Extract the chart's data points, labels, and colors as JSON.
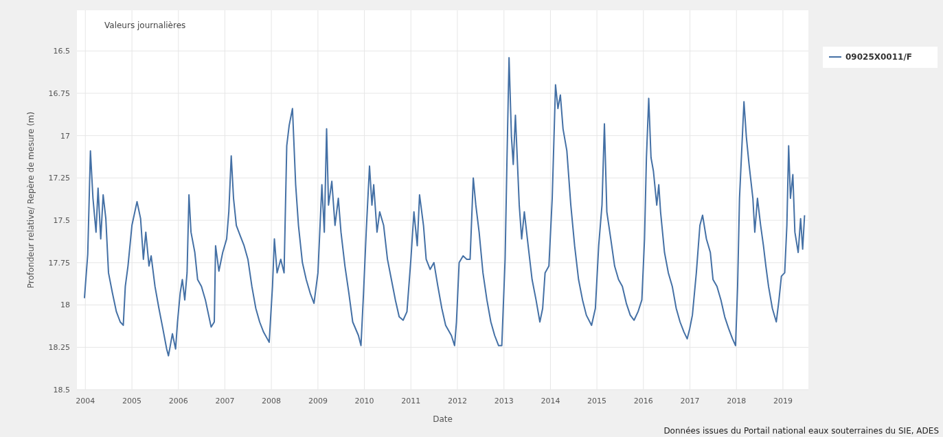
{
  "chart_data": {
    "type": "line",
    "title": "Valeurs journalières",
    "xlabel": "Date",
    "ylabel": "Profondeur relative/ Repère de mesure (m)",
    "annotations": [
      "Données issues du Portail national eaux souterraines du SIE, ADES"
    ],
    "xlim": [
      "2003-10-27",
      "2019-07-20"
    ],
    "xticks": [
      "2004",
      "2005",
      "2006",
      "2007",
      "2008",
      "2009",
      "2010",
      "2011",
      "2012",
      "2013",
      "2014",
      "2015",
      "2016",
      "2017",
      "2018",
      "2019"
    ],
    "ylim": [
      18.5,
      16.26
    ],
    "yticks": [
      16.5,
      16.75,
      17,
      17.25,
      17.5,
      17.75,
      18,
      18.25,
      18.5
    ],
    "grid": true,
    "legend": "right",
    "marker": "none",
    "line_style": "solid",
    "series": [
      {
        "name": "09025X0011/F",
        "color": "#4470a5",
        "x": [
          "2003-12-25",
          "2004-01-20",
          "2004-02-10",
          "2004-03-01",
          "2004-03-25",
          "2004-04-10",
          "2004-05-01",
          "2004-05-20",
          "2004-06-10",
          "2004-07-01",
          "2004-08-01",
          "2004-09-01",
          "2004-10-01",
          "2004-10-25",
          "2004-11-10",
          "2004-12-01",
          "2005-01-01",
          "2005-02-10",
          "2005-03-10",
          "2005-04-01",
          "2005-04-20",
          "2005-05-15",
          "2005-06-01",
          "2005-07-01",
          "2005-08-01",
          "2005-09-01",
          "2005-10-01",
          "2005-10-15",
          "2005-11-15",
          "2005-12-10",
          "2005-12-25",
          "2006-01-15",
          "2006-02-01",
          "2006-02-20",
          "2006-03-10",
          "2006-03-25",
          "2006-04-10",
          "2006-05-10",
          "2006-06-01",
          "2006-07-01",
          "2006-08-01",
          "2006-09-15",
          "2006-10-10",
          "2006-10-20",
          "2006-11-15",
          "2006-12-15",
          "2007-01-15",
          "2007-02-01",
          "2007-02-20",
          "2007-03-10",
          "2007-04-01",
          "2007-05-01",
          "2007-06-01",
          "2007-07-01",
          "2007-08-01",
          "2007-09-01",
          "2007-10-01",
          "2007-11-01",
          "2007-12-15",
          "2008-01-10",
          "2008-01-25",
          "2008-02-15",
          "2008-03-15",
          "2008-04-10",
          "2008-05-01",
          "2008-05-20",
          "2008-06-15",
          "2008-07-10",
          "2008-08-01",
          "2008-09-01",
          "2008-10-01",
          "2008-11-01",
          "2008-12-01",
          "2009-01-01",
          "2009-02-01",
          "2009-02-20",
          "2009-03-10",
          "2009-03-25",
          "2009-04-20",
          "2009-05-15",
          "2009-06-10",
          "2009-07-01",
          "2009-08-01",
          "2009-09-01",
          "2009-10-01",
          "2009-11-15",
          "2009-12-05",
          "2009-12-25",
          "2010-01-15",
          "2010-02-10",
          "2010-03-01",
          "2010-03-15",
          "2010-04-10",
          "2010-05-01",
          "2010-06-01",
          "2010-07-01",
          "2010-08-01",
          "2010-09-01",
          "2010-10-01",
          "2010-11-01",
          "2010-12-01",
          "2011-01-01",
          "2011-01-25",
          "2011-02-20",
          "2011-03-10",
          "2011-04-10",
          "2011-05-01",
          "2011-06-01",
          "2011-07-01",
          "2011-08-01",
          "2011-09-01",
          "2011-10-01",
          "2011-11-15",
          "2011-12-10",
          "2011-12-25",
          "2012-01-15",
          "2012-02-15",
          "2012-03-15",
          "2012-04-10",
          "2012-05-05",
          "2012-05-25",
          "2012-06-20",
          "2012-07-20",
          "2012-08-20",
          "2012-09-20",
          "2012-10-20",
          "2012-11-20",
          "2012-12-15",
          "2013-01-10",
          "2013-01-25",
          "2013-02-10",
          "2013-03-01",
          "2013-03-15",
          "2013-04-01",
          "2013-05-01",
          "2013-05-20",
          "2013-06-10",
          "2013-07-10",
          "2013-08-10",
          "2013-09-10",
          "2013-10-10",
          "2013-11-01",
          "2013-11-20",
          "2013-12-20",
          "2014-01-15",
          "2014-02-10",
          "2014-03-01",
          "2014-03-20",
          "2014-04-10",
          "2014-05-10",
          "2014-06-10",
          "2014-07-10",
          "2014-08-10",
          "2014-09-10",
          "2014-10-10",
          "2014-11-20",
          "2014-12-20",
          "2015-01-15",
          "2015-02-10",
          "2015-03-01",
          "2015-03-20",
          "2015-04-20",
          "2015-05-20",
          "2015-06-20",
          "2015-07-20",
          "2015-08-20",
          "2015-09-20",
          "2015-10-20",
          "2015-11-20",
          "2015-12-20",
          "2016-01-10",
          "2016-01-25",
          "2016-02-12",
          "2016-03-01",
          "2016-03-20",
          "2016-04-15",
          "2016-05-01",
          "2016-05-15",
          "2016-06-15",
          "2016-07-15",
          "2016-08-15",
          "2016-09-15",
          "2016-10-15",
          "2016-11-15",
          "2016-12-10",
          "2016-12-30",
          "2017-01-20",
          "2017-02-20",
          "2017-03-20",
          "2017-04-10",
          "2017-05-10",
          "2017-06-10",
          "2017-07-01",
          "2017-08-01",
          "2017-09-01",
          "2017-10-01",
          "2017-11-01",
          "2017-12-01",
          "2017-12-25",
          "2018-01-10",
          "2018-01-25",
          "2018-02-10",
          "2018-03-01",
          "2018-03-20",
          "2018-04-10",
          "2018-05-10",
          "2018-05-25",
          "2018-06-15",
          "2018-07-10",
          "2018-08-01",
          "2018-08-20",
          "2018-09-10",
          "2018-10-10",
          "2018-11-10",
          "2018-12-01",
          "2018-12-20",
          "2019-01-15",
          "2019-02-01",
          "2019-02-15",
          "2019-03-01",
          "2019-03-20",
          "2019-04-05",
          "2019-05-01",
          "2019-05-20",
          "2019-06-05",
          "2019-06-20"
        ],
        "values": [
          17.96,
          17.7,
          17.09,
          17.37,
          17.57,
          17.31,
          17.61,
          17.35,
          17.49,
          17.81,
          17.93,
          18.04,
          18.1,
          18.12,
          17.89,
          17.77,
          17.53,
          17.39,
          17.49,
          17.73,
          17.57,
          17.77,
          17.71,
          17.89,
          18.02,
          18.14,
          18.26,
          18.3,
          18.17,
          18.26,
          18.1,
          17.93,
          17.85,
          17.97,
          17.81,
          17.35,
          17.57,
          17.69,
          17.85,
          17.89,
          17.97,
          18.13,
          18.1,
          17.65,
          17.8,
          17.69,
          17.61,
          17.45,
          17.12,
          17.37,
          17.53,
          17.59,
          17.65,
          17.73,
          17.89,
          18.02,
          18.1,
          18.16,
          18.22,
          17.89,
          17.61,
          17.81,
          17.73,
          17.81,
          17.06,
          16.94,
          16.84,
          17.29,
          17.53,
          17.75,
          17.85,
          17.93,
          17.99,
          17.81,
          17.29,
          17.57,
          16.96,
          17.41,
          17.27,
          17.53,
          17.37,
          17.57,
          17.77,
          17.93,
          18.1,
          18.18,
          18.24,
          17.93,
          17.57,
          17.18,
          17.41,
          17.29,
          17.57,
          17.45,
          17.53,
          17.73,
          17.85,
          17.97,
          18.07,
          18.09,
          18.04,
          17.73,
          17.45,
          17.65,
          17.35,
          17.53,
          17.73,
          17.79,
          17.75,
          17.89,
          18.02,
          18.12,
          18.18,
          18.24,
          18.1,
          17.75,
          17.71,
          17.73,
          17.73,
          17.25,
          17.41,
          17.57,
          17.81,
          17.97,
          18.1,
          18.18,
          18.24,
          18.24,
          17.73,
          17.13,
          16.54,
          17.01,
          17.17,
          16.88,
          17.41,
          17.61,
          17.45,
          17.65,
          17.85,
          17.97,
          18.1,
          18.02,
          17.81,
          17.77,
          17.37,
          16.7,
          16.84,
          16.76,
          16.96,
          17.09,
          17.41,
          17.65,
          17.85,
          17.97,
          18.06,
          18.12,
          18.02,
          17.65,
          17.41,
          16.93,
          17.45,
          17.61,
          17.77,
          17.85,
          17.89,
          17.99,
          18.06,
          18.09,
          18.04,
          17.97,
          17.61,
          17.13,
          16.78,
          17.13,
          17.21,
          17.41,
          17.29,
          17.45,
          17.69,
          17.81,
          17.89,
          18.02,
          18.1,
          18.16,
          18.2,
          18.14,
          18.06,
          17.81,
          17.53,
          17.47,
          17.61,
          17.69,
          17.85,
          17.89,
          17.97,
          18.07,
          18.14,
          18.2,
          18.24,
          17.89,
          17.37,
          17.11,
          16.8,
          17.01,
          17.17,
          17.37,
          17.57,
          17.37,
          17.53,
          17.65,
          17.77,
          17.89,
          18.02,
          18.1,
          17.97,
          17.83,
          17.81,
          17.53,
          17.06,
          17.37,
          17.23,
          17.57,
          17.69,
          17.49,
          17.67,
          17.47
        ]
      }
    ]
  }
}
